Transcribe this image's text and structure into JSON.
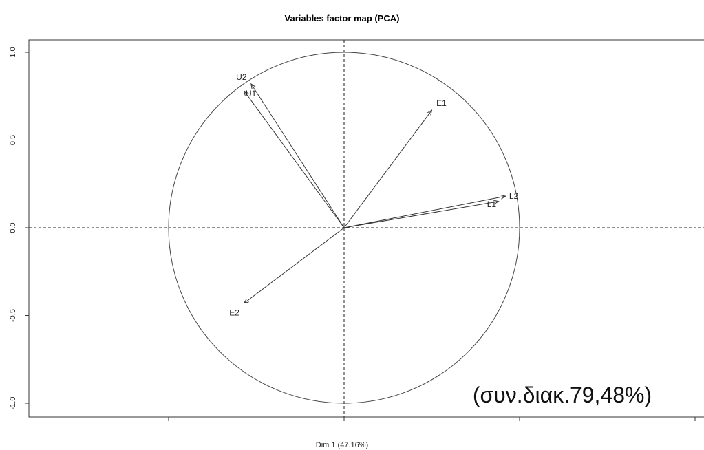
{
  "chart_data": {
    "type": "scatter",
    "title": "Variables factor map (PCA)",
    "xlabel": "Dim 1 (47.16%)",
    "ylabel": "",
    "xlim": [
      -1.0,
      1.0
    ],
    "ylim": [
      -1.0,
      1.0
    ],
    "y_ticks": [
      1.0,
      0.5,
      0.0,
      -0.5,
      -1.0
    ],
    "y_tick_labels": [
      "1.0",
      "0.5",
      "0.0",
      "-0.5",
      "-1.0"
    ],
    "x_ticks": [
      -1.3,
      -1.0,
      0.0,
      1.0,
      2.0
    ],
    "unit_circle": true,
    "reference_lines": {
      "x": 0,
      "y": 0,
      "style": "dashed"
    },
    "vectors": [
      {
        "name": "U2",
        "x": -0.53,
        "y": 0.82
      },
      {
        "name": "U1",
        "x": -0.57,
        "y": 0.78
      },
      {
        "name": "E1",
        "x": 0.5,
        "y": 0.67
      },
      {
        "name": "L2",
        "x": 0.92,
        "y": 0.18
      },
      {
        "name": "L1",
        "x": 0.88,
        "y": 0.15
      },
      {
        "name": "E2",
        "x": -0.57,
        "y": -0.43
      }
    ],
    "annotation": "(συν.διακ.79,48%)"
  }
}
